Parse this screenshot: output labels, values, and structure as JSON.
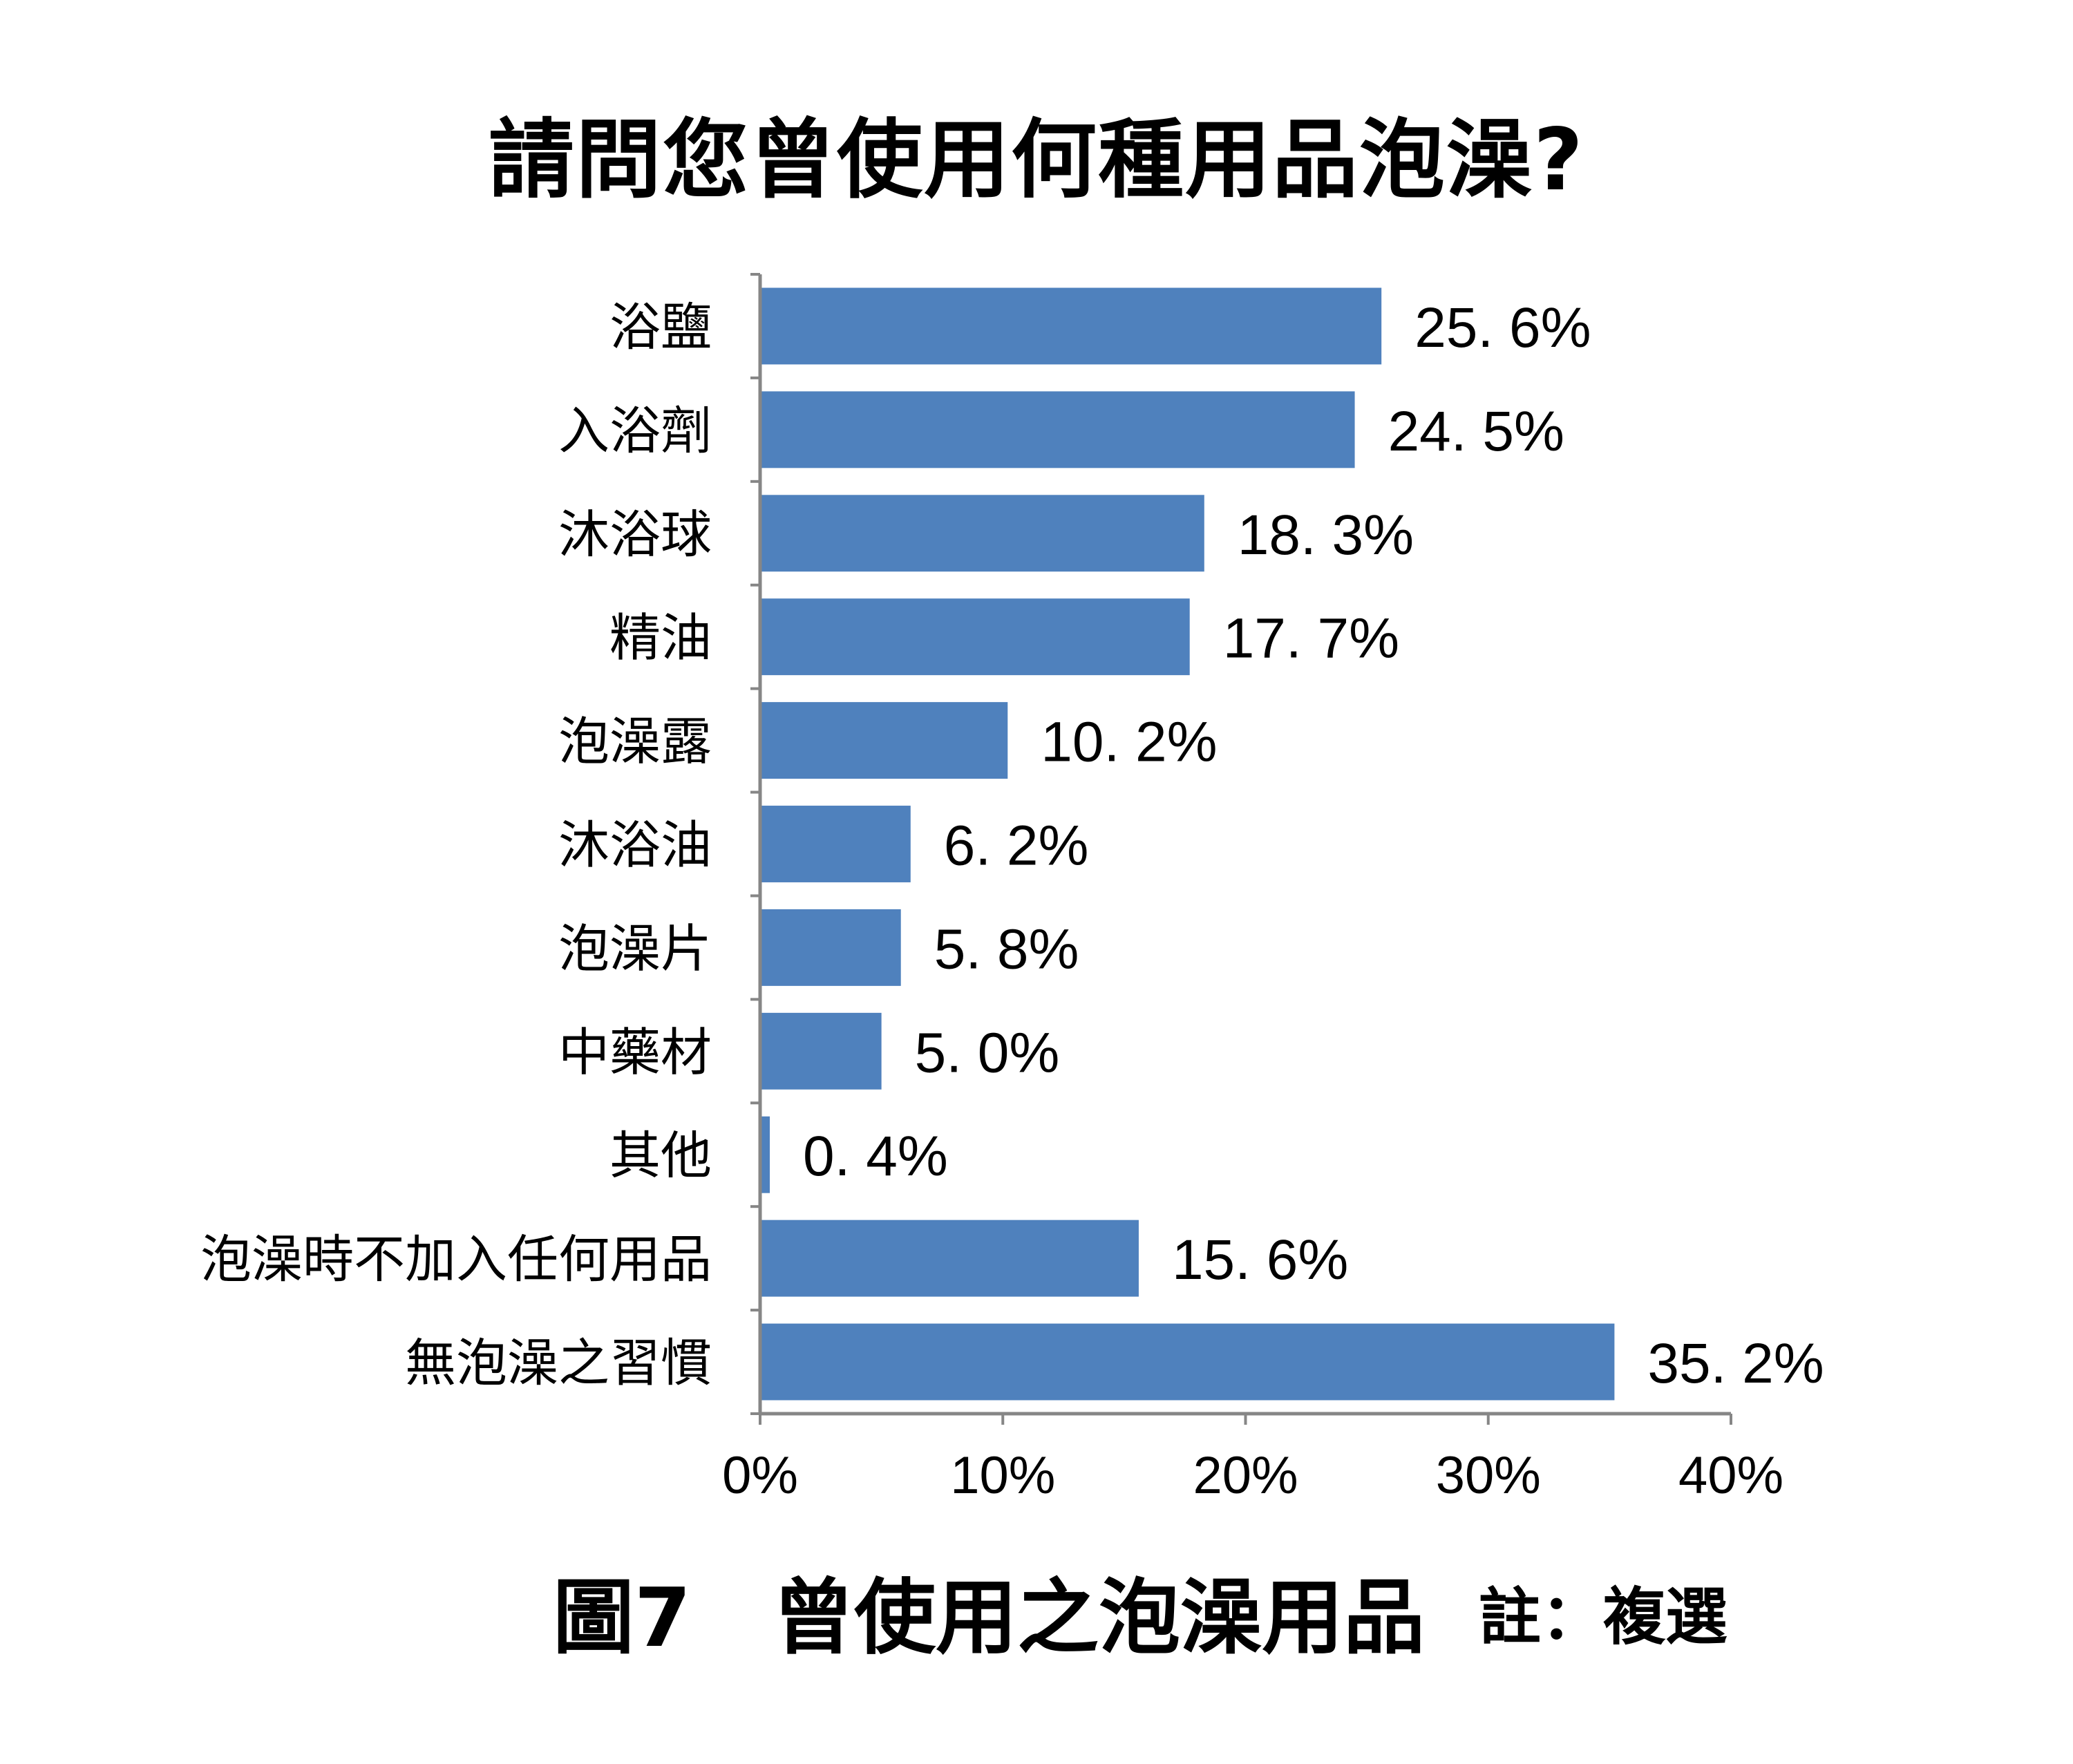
{
  "title": "請問您曾使用何種用品泡澡?",
  "caption": {
    "figure": "圖7　曾使用之泡澡用品",
    "note": "註：複選"
  },
  "colors": {
    "bar": "#4f81bd",
    "axis": "#868686"
  },
  "chart_data": {
    "type": "bar",
    "orientation": "horizontal",
    "title": "請問您曾使用何種用品泡澡?",
    "categories": [
      "浴鹽",
      "入浴劑",
      "沐浴球",
      "精油",
      "泡澡露",
      "沐浴油",
      "泡澡片",
      "中藥材",
      "其他",
      "泡澡時不加入任何用品",
      "無泡澡之習慣"
    ],
    "values": [
      25.6,
      24.5,
      18.3,
      17.7,
      10.2,
      6.2,
      5.8,
      5.0,
      0.4,
      15.6,
      35.2
    ],
    "value_labels": [
      "25. 6%",
      "24. 5%",
      "18. 3%",
      "17. 7%",
      "10. 2%",
      "6. 2%",
      "5. 8%",
      "5. 0%",
      "0. 4%",
      "15. 6%",
      "35. 2%"
    ],
    "xlim": [
      0,
      40
    ],
    "ticks": [
      0,
      10,
      20,
      30,
      40
    ],
    "tick_labels": [
      "0%",
      "10%",
      "20%",
      "30%",
      "40%"
    ],
    "xlabel": "",
    "ylabel": "",
    "grid": false,
    "legend": "none"
  }
}
